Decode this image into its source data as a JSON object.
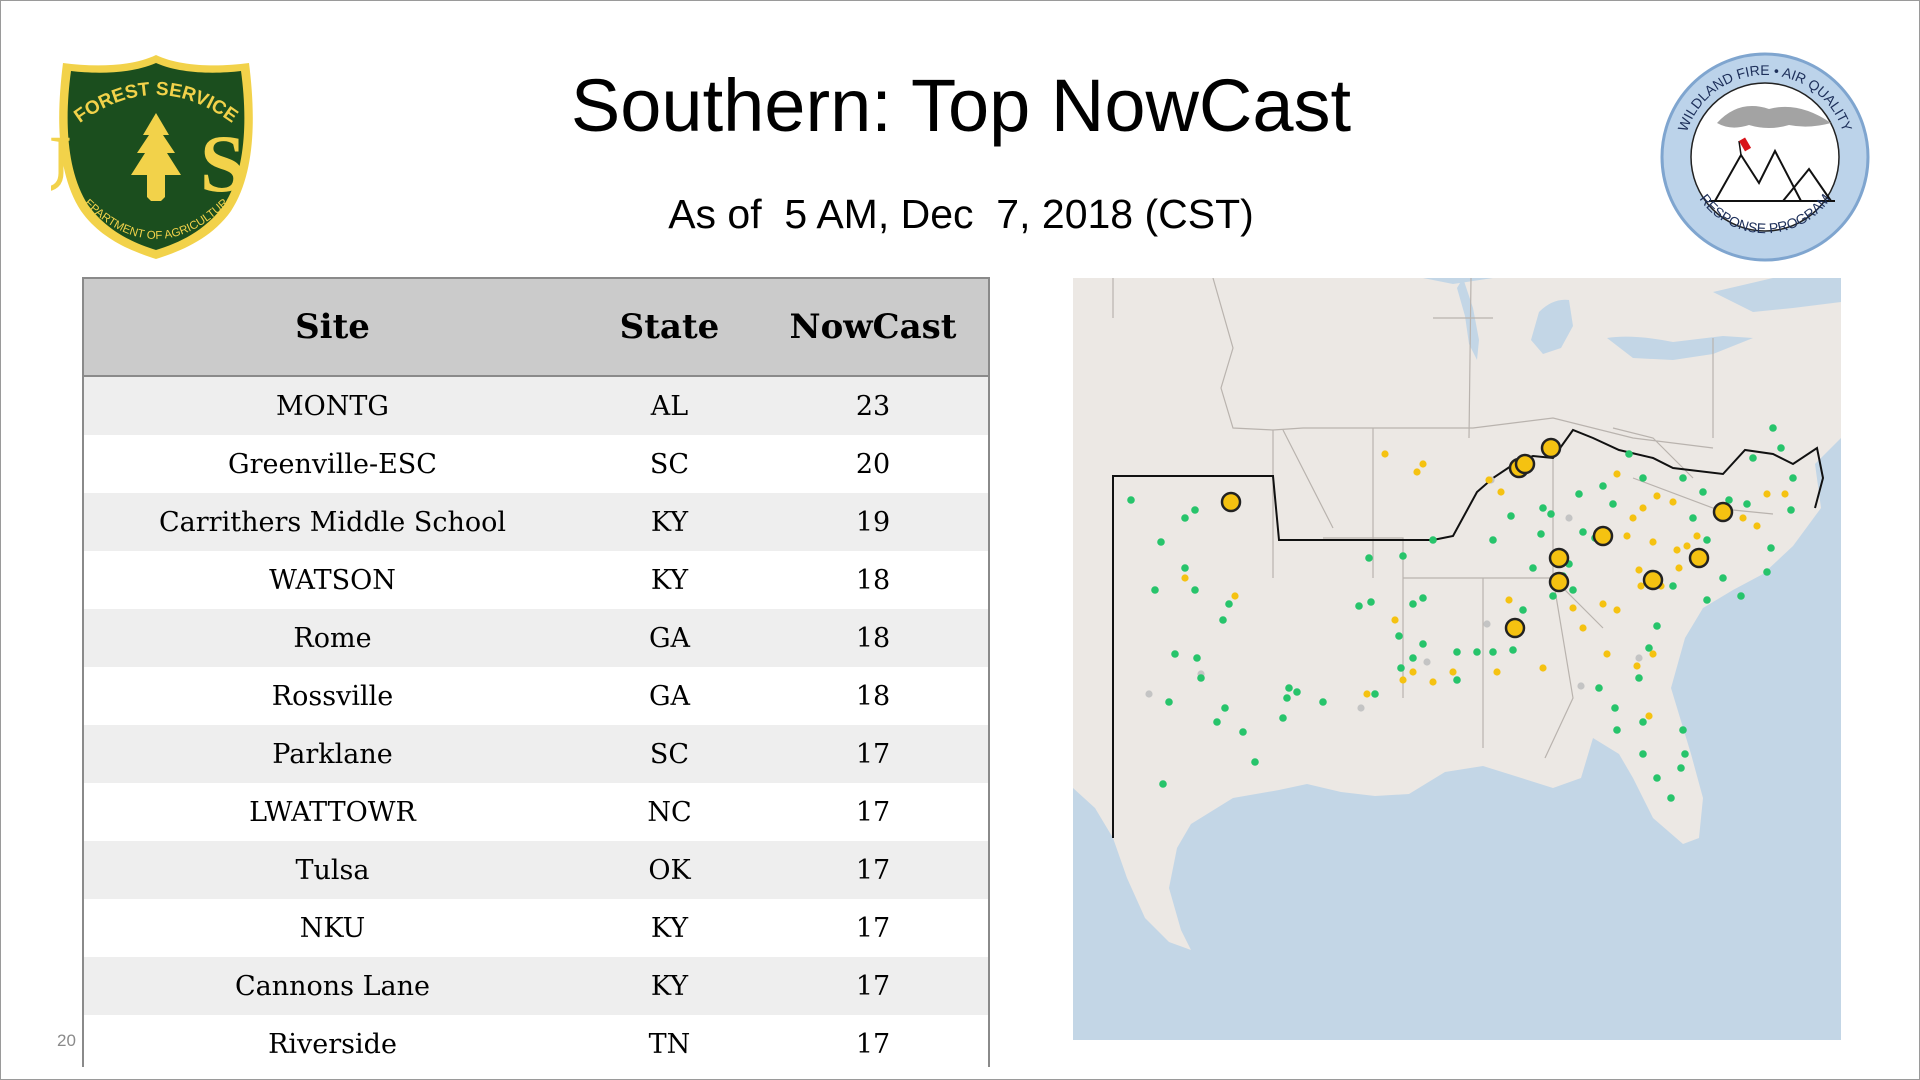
{
  "title": "Southern: Top NowCast",
  "subtitle": "As of  5 AM, Dec  7, 2018 (CST)",
  "forest_logo": {
    "top_text": "FOREST SERVICE",
    "mark": "U S",
    "bottom_text": "DEPARTMENT OF AGRICULTURE",
    "colors": {
      "shield": "#1b4e1e",
      "gold": "#f2d24a"
    }
  },
  "wildfire_logo": {
    "top_text": "WILDLAND FIRE • AIR QUALITY",
    "bottom_text": "RESPONSE PROGRAM",
    "colors": {
      "ring": "#bcd3ea",
      "border": "#7fa5cf"
    }
  },
  "table": {
    "headers": {
      "site": "Site",
      "state": "State",
      "nowcast": "NowCast"
    },
    "rows": [
      {
        "site": "MONTG",
        "state": "AL",
        "nowcast": "23"
      },
      {
        "site": "Greenville-ESC",
        "state": "SC",
        "nowcast": "20"
      },
      {
        "site": "Carrithers Middle School",
        "state": "KY",
        "nowcast": "19"
      },
      {
        "site": "WATSON",
        "state": "KY",
        "nowcast": "18"
      },
      {
        "site": "Rome",
        "state": "GA",
        "nowcast": "18"
      },
      {
        "site": "Rossville",
        "state": "GA",
        "nowcast": "18"
      },
      {
        "site": "Parklane",
        "state": "SC",
        "nowcast": "17"
      },
      {
        "site": "LWATTOWR",
        "state": "NC",
        "nowcast": "17"
      },
      {
        "site": "Tulsa",
        "state": "OK",
        "nowcast": "17"
      },
      {
        "site": "NKU",
        "state": "KY",
        "nowcast": "17"
      },
      {
        "site": "Cannons Lane",
        "state": "KY",
        "nowcast": "17"
      },
      {
        "site": "Riverside",
        "state": "TN",
        "nowcast": "17"
      }
    ]
  },
  "page_number": "20",
  "map": {
    "colors": {
      "water": "#c3d6e6",
      "land": "#ece8e4",
      "good": "#27c46b",
      "moderate": "#f5c211",
      "top_marker": "#f5c211",
      "no_data": "#c4c4c4"
    }
  }
}
